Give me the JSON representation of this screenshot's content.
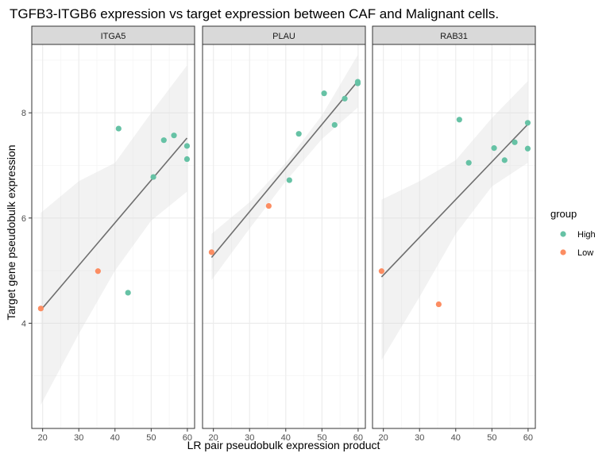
{
  "chart_data": {
    "type": "scatter",
    "title": "TGFB3-ITGB6 expression vs target expression between CAF and Malignant cells.",
    "xlabel": "LR pair pseudobulk expression product",
    "ylabel": "Target gene pseudobulk expression",
    "xlim": [
      17,
      62
    ],
    "ylim": [
      2,
      9.3
    ],
    "x_ticks": [
      20,
      30,
      40,
      50,
      60
    ],
    "y_ticks": [
      4,
      6,
      8
    ],
    "grid": true,
    "legend": {
      "title": "group",
      "placement": "right",
      "entries": [
        {
          "name": "High",
          "color": "#66c2a5"
        },
        {
          "name": "Low",
          "color": "#fc8d62"
        }
      ]
    },
    "facets": [
      {
        "name": "ITGA5",
        "points": [
          {
            "x": 19.5,
            "y": 4.28,
            "group": "Low"
          },
          {
            "x": 35.3,
            "y": 4.99,
            "group": "Low"
          },
          {
            "x": 41.0,
            "y": 7.7,
            "group": "High"
          },
          {
            "x": 43.6,
            "y": 4.58,
            "group": "High"
          },
          {
            "x": 50.6,
            "y": 6.78,
            "group": "High"
          },
          {
            "x": 53.5,
            "y": 7.48,
            "group": "High"
          },
          {
            "x": 56.3,
            "y": 7.57,
            "group": "High"
          },
          {
            "x": 59.9,
            "y": 7.37,
            "group": "High"
          },
          {
            "x": 59.9,
            "y": 7.12,
            "group": "High"
          }
        ],
        "fit": {
          "x": [
            19.5,
            59.9
          ],
          "y": [
            4.25,
            7.52
          ]
        },
        "ci": {
          "x": [
            19.5,
            30,
            40,
            50,
            59.9
          ],
          "lower": [
            2.45,
            3.8,
            5.0,
            5.95,
            6.5
          ],
          "upper": [
            6.1,
            6.7,
            7.05,
            8.0,
            8.9
          ]
        }
      },
      {
        "name": "PLAU",
        "points": [
          {
            "x": 19.5,
            "y": 5.35,
            "group": "Low"
          },
          {
            "x": 35.3,
            "y": 6.23,
            "group": "Low"
          },
          {
            "x": 41.0,
            "y": 6.72,
            "group": "High"
          },
          {
            "x": 43.6,
            "y": 7.6,
            "group": "High"
          },
          {
            "x": 50.6,
            "y": 8.37,
            "group": "High"
          },
          {
            "x": 53.5,
            "y": 7.77,
            "group": "High"
          },
          {
            "x": 56.3,
            "y": 8.27,
            "group": "High"
          },
          {
            "x": 59.9,
            "y": 8.59,
            "group": "High"
          },
          {
            "x": 59.9,
            "y": 8.56,
            "group": "High"
          }
        ],
        "fit": {
          "x": [
            19.5,
            59.9
          ],
          "y": [
            5.25,
            8.6
          ]
        },
        "ci": {
          "x": [
            19.5,
            30,
            40,
            50,
            59.9
          ],
          "lower": [
            4.82,
            5.8,
            6.7,
            7.5,
            8.1
          ],
          "upper": [
            5.7,
            6.3,
            7.05,
            7.95,
            9.1
          ]
        }
      },
      {
        "name": "RAB31",
        "points": [
          {
            "x": 19.5,
            "y": 4.99,
            "group": "Low"
          },
          {
            "x": 35.3,
            "y": 4.36,
            "group": "Low"
          },
          {
            "x": 41.0,
            "y": 7.87,
            "group": "High"
          },
          {
            "x": 43.6,
            "y": 7.05,
            "group": "High"
          },
          {
            "x": 50.6,
            "y": 7.33,
            "group": "High"
          },
          {
            "x": 53.5,
            "y": 7.1,
            "group": "High"
          },
          {
            "x": 56.3,
            "y": 7.44,
            "group": "High"
          },
          {
            "x": 59.9,
            "y": 7.81,
            "group": "High"
          },
          {
            "x": 59.9,
            "y": 7.32,
            "group": "High"
          }
        ],
        "fit": {
          "x": [
            19.5,
            59.9
          ],
          "y": [
            4.88,
            7.78
          ]
        },
        "ci": {
          "x": [
            19.5,
            30,
            40,
            50,
            59.9
          ],
          "lower": [
            3.3,
            4.5,
            5.7,
            6.6,
            7.05
          ],
          "upper": [
            6.35,
            6.7,
            7.1,
            7.9,
            8.6
          ]
        }
      }
    ]
  }
}
